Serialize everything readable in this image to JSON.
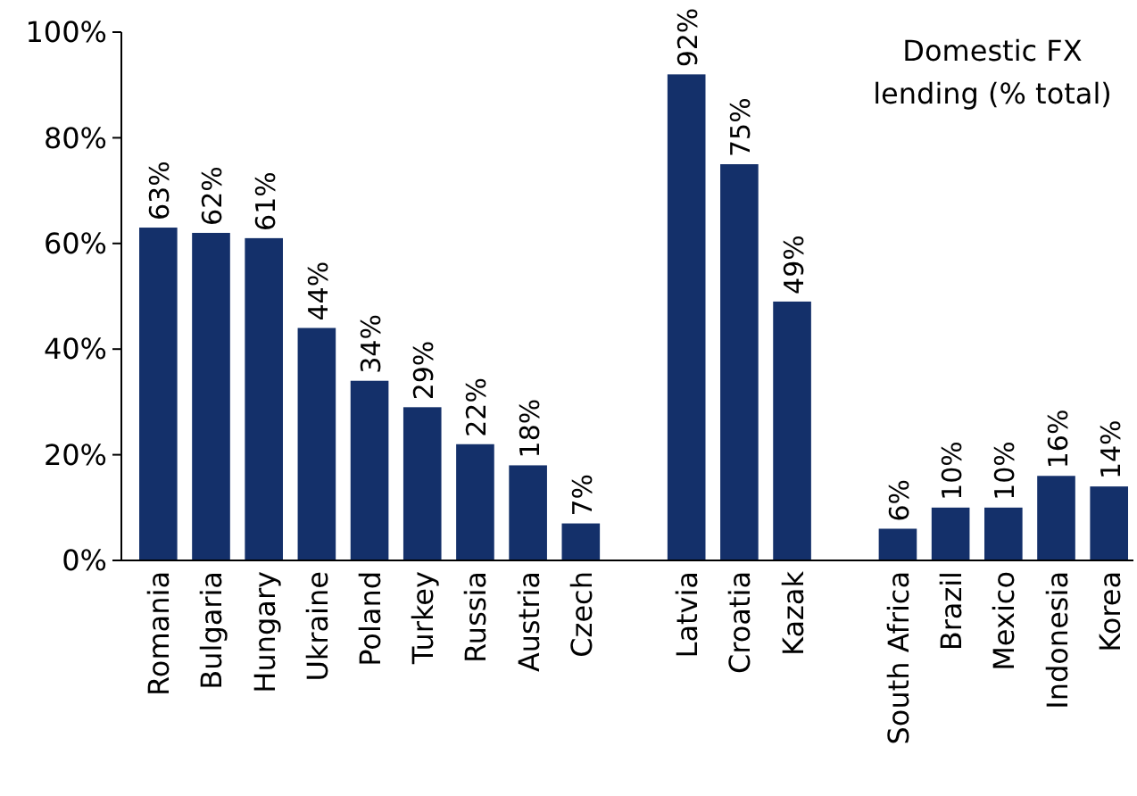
{
  "chart_data": {
    "type": "bar",
    "categories": [
      "Romania",
      "Bulgaria",
      "Hungary",
      "Ukraine",
      "Poland",
      "Turkey",
      "Russia",
      "Austria",
      "Czech",
      null,
      "Latvia",
      "Croatia",
      "Kazak",
      null,
      "South Africa",
      "Brazil",
      "Mexico",
      "Indonesia",
      "Korea"
    ],
    "values": [
      63,
      62,
      61,
      44,
      34,
      29,
      22,
      18,
      7,
      null,
      92,
      75,
      49,
      null,
      6,
      10,
      10,
      16,
      14
    ],
    "value_labels": [
      "63%",
      "62%",
      "61%",
      "44%",
      "34%",
      "29%",
      "22%",
      "18%",
      "7%",
      null,
      "92%",
      "75%",
      "49%",
      null,
      "6%",
      "10%",
      "10%",
      "16%",
      "14%"
    ],
    "color": "#14306a",
    "grid": false,
    "ylim": [
      0,
      100
    ],
    "yticks": [
      {
        "value": 0,
        "label": "0%"
      },
      {
        "value": 20,
        "label": "20%"
      },
      {
        "value": 40,
        "label": "40%"
      },
      {
        "value": 60,
        "label": "60%"
      },
      {
        "value": 80,
        "label": "80%"
      },
      {
        "value": 100,
        "label": "100%"
      }
    ],
    "annotations": [
      "Domestic FX lending (% total)"
    ]
  }
}
